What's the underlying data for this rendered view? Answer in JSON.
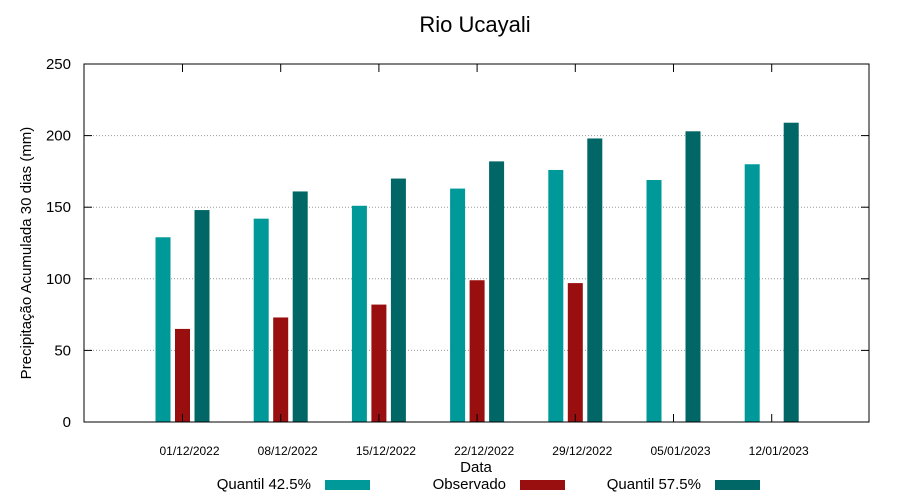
{
  "chart_data": {
    "type": "bar",
    "title": "Rio Ucayali",
    "xlabel": "Data",
    "ylabel": "Precipitação Acumulada 30 dias (mm)",
    "ylim": [
      0,
      250
    ],
    "yticks": [
      0,
      50,
      100,
      150,
      200,
      250
    ],
    "grid": true,
    "legend_position": "bottom",
    "categories": [
      "01/12/2022",
      "08/12/2022",
      "15/12/2022",
      "22/12/2022",
      "29/12/2022",
      "05/01/2023",
      "12/01/2023"
    ],
    "series": [
      {
        "name": "Quantil 42.5%",
        "color": "#009999",
        "values": [
          129,
          142,
          151,
          163,
          176,
          169,
          180
        ]
      },
      {
        "name": "Observado",
        "color": "#990f0f",
        "values": [
          65,
          73,
          82,
          99,
          97,
          null,
          null
        ]
      },
      {
        "name": "Quantil 57.5%",
        "color": "#006666",
        "values": [
          148,
          161,
          170,
          182,
          198,
          203,
          209
        ]
      }
    ]
  }
}
